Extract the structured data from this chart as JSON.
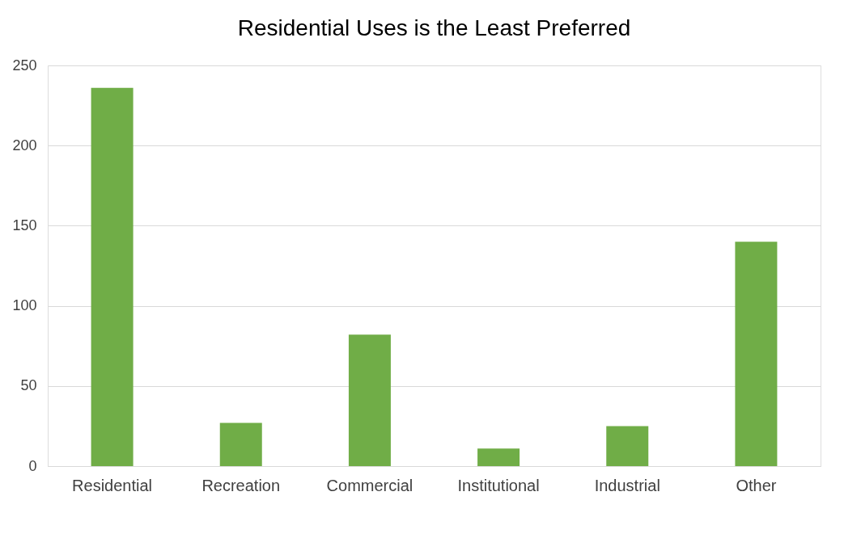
{
  "chart_data": {
    "type": "bar",
    "title": "Residential Uses is the Least Preferred",
    "categories": [
      "Residential",
      "Recreation",
      "Commercial",
      "Institutional",
      "Industrial",
      "Other"
    ],
    "values": [
      236,
      27,
      82,
      11,
      25,
      140
    ],
    "color": "#70ad47",
    "ylim": [
      0,
      250
    ],
    "yticks": [
      0,
      50,
      100,
      150,
      200,
      250
    ],
    "grid": "y"
  }
}
